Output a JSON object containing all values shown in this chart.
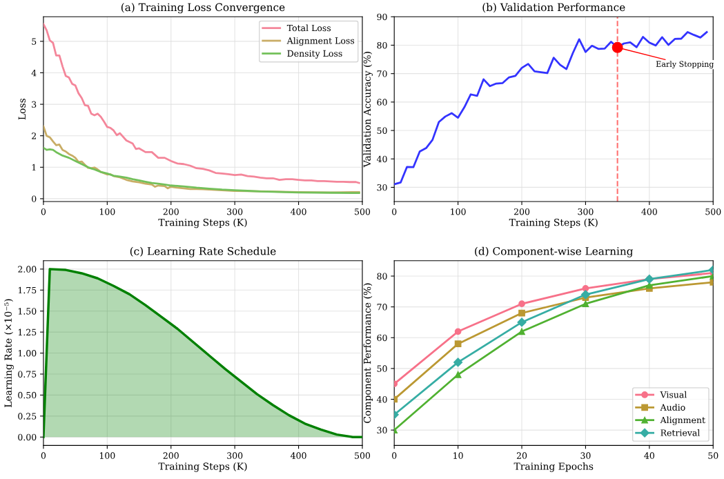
{
  "chart_data": [
    {
      "type": "line",
      "title": "(a) Training Loss Convergence",
      "xlabel": "Training Steps (K)",
      "ylabel": "Loss",
      "xlim": [
        0,
        500
      ],
      "xticks": [
        0,
        100,
        200,
        300,
        400,
        500
      ],
      "ylim": [
        -0.09,
        5.78
      ],
      "yticks": [
        0,
        1,
        2,
        3,
        4,
        5
      ],
      "grid": true,
      "legend": "top right",
      "series": [
        {
          "name": "Total Loss",
          "color": "#f4869a",
          "x": [
            0,
            5,
            10,
            15,
            20,
            25,
            30,
            35,
            40,
            45,
            50,
            55,
            60,
            65,
            70,
            75,
            80,
            85,
            90,
            95,
            100,
            105,
            110,
            115,
            120,
            130,
            140,
            145,
            150,
            160,
            170,
            180,
            190,
            200,
            210,
            220,
            230,
            240,
            250,
            260,
            270,
            280,
            290,
            300,
            310,
            320,
            330,
            340,
            350,
            360,
            370,
            380,
            390,
            400,
            410,
            420,
            430,
            440,
            450,
            460,
            470,
            480,
            490,
            495
          ],
          "values": [
            5.55,
            5.35,
            5.03,
            4.95,
            4.55,
            4.55,
            4.2,
            3.9,
            3.85,
            3.65,
            3.6,
            3.35,
            3.2,
            2.97,
            2.95,
            2.7,
            2.65,
            2.7,
            2.6,
            2.45,
            2.28,
            2.25,
            2.17,
            2.02,
            2.08,
            1.85,
            1.75,
            1.58,
            1.6,
            1.48,
            1.48,
            1.3,
            1.3,
            1.2,
            1.12,
            1.1,
            1.05,
            0.97,
            0.95,
            0.9,
            0.82,
            0.8,
            0.78,
            0.75,
            0.77,
            0.72,
            0.7,
            0.67,
            0.65,
            0.65,
            0.6,
            0.62,
            0.62,
            0.6,
            0.58,
            0.58,
            0.56,
            0.56,
            0.55,
            0.54,
            0.54,
            0.53,
            0.53,
            0.5
          ]
        },
        {
          "name": "Alignment Loss",
          "color": "#c9ad66",
          "x": [
            0,
            5,
            10,
            15,
            20,
            25,
            30,
            35,
            40,
            45,
            50,
            55,
            60,
            65,
            70,
            75,
            80,
            85,
            90,
            100,
            105,
            110,
            120,
            130,
            140,
            150,
            160,
            170,
            175,
            180,
            190,
            195,
            200,
            210,
            220,
            230,
            240,
            250,
            260,
            270,
            280,
            300,
            320,
            350,
            400,
            450,
            495
          ],
          "values": [
            2.3,
            2.0,
            1.95,
            1.82,
            1.7,
            1.72,
            1.55,
            1.5,
            1.42,
            1.37,
            1.3,
            1.17,
            1.18,
            1.08,
            0.98,
            0.97,
            0.99,
            0.93,
            0.85,
            0.77,
            0.78,
            0.72,
            0.68,
            0.6,
            0.55,
            0.52,
            0.48,
            0.45,
            0.38,
            0.42,
            0.4,
            0.33,
            0.38,
            0.35,
            0.33,
            0.31,
            0.31,
            0.3,
            0.29,
            0.28,
            0.27,
            0.25,
            0.24,
            0.23,
            0.21,
            0.2,
            0.21
          ]
        },
        {
          "name": "Density Loss",
          "color": "#73c05a",
          "x": [
            0,
            5,
            10,
            15,
            20,
            30,
            40,
            50,
            60,
            70,
            75,
            80,
            90,
            100,
            110,
            120,
            130,
            140,
            150,
            160,
            170,
            180,
            190,
            200,
            220,
            240,
            260,
            280,
            300,
            320,
            340,
            360,
            380,
            400,
            450,
            495
          ],
          "values": [
            1.62,
            1.55,
            1.57,
            1.55,
            1.48,
            1.37,
            1.3,
            1.2,
            1.1,
            1.0,
            0.96,
            0.93,
            0.85,
            0.8,
            0.73,
            0.7,
            0.67,
            0.62,
            0.58,
            0.54,
            0.5,
            0.48,
            0.45,
            0.42,
            0.39,
            0.35,
            0.32,
            0.29,
            0.27,
            0.25,
            0.23,
            0.22,
            0.21,
            0.2,
            0.19,
            0.18
          ]
        }
      ]
    },
    {
      "type": "line",
      "title": "(b) Validation Performance",
      "xlabel": "Training Steps (K)",
      "ylabel": "Validation Accuracy (%)",
      "xlim": [
        0,
        500
      ],
      "xticks": [
        0,
        100,
        200,
        300,
        400,
        500
      ],
      "ylim": [
        25,
        90
      ],
      "yticks": [
        30,
        40,
        50,
        60,
        70,
        80,
        90
      ],
      "grid": true,
      "ref_lines": [
        {
          "axis": "x",
          "value": 350,
          "color": "#ff7070",
          "line_style": "dashed"
        }
      ],
      "annotations": [
        {
          "text": "Early Stopping",
          "x": 350,
          "y": 79.2
        }
      ],
      "series": [
        {
          "color": "#3333ff",
          "x": [
            0,
            10,
            20,
            30,
            40,
            50,
            60,
            70,
            80,
            90,
            100,
            110,
            120,
            130,
            140,
            150,
            160,
            170,
            180,
            190,
            200,
            210,
            220,
            230,
            240,
            250,
            260,
            270,
            280,
            290,
            300,
            310,
            320,
            330,
            340,
            350,
            360,
            370,
            380,
            390,
            400,
            410,
            420,
            430,
            440,
            450,
            460,
            470,
            480,
            490
          ],
          "values": [
            31.1,
            31.7,
            37.2,
            37.1,
            42.6,
            43.8,
            46.7,
            53,
            54.9,
            56.1,
            54.5,
            58.2,
            62.7,
            62.2,
            68,
            65.6,
            66.5,
            66.7,
            68.7,
            69.2,
            72,
            73.4,
            70.8,
            70.5,
            70.2,
            75.6,
            73.1,
            71.6,
            77.2,
            82.1,
            77.6,
            79.8,
            78.7,
            78.8,
            81.2,
            79.2,
            80.6,
            81,
            79.3,
            82.9,
            80.9,
            79.9,
            82.8,
            80.1,
            82.2,
            82.3,
            84.6,
            83.6,
            82.7,
            84.6
          ]
        },
        {
          "type": "scatter",
          "color": "#ff0000",
          "x": [
            350
          ],
          "values": [
            79.2
          ]
        }
      ]
    },
    {
      "type": "area",
      "title": "(c) Learning Rate Schedule",
      "xlabel": "Training Steps (K)",
      "ylabel": "Learning Rate (×10⁻⁵)",
      "xlim": [
        0,
        500
      ],
      "xticks": [
        0,
        100,
        200,
        300,
        400,
        500
      ],
      "ylim": [
        -0.1,
        2.1
      ],
      "yticks": [
        {
          "value": 0,
          "label": "0.00"
        },
        {
          "value": 0.25,
          "label": "0.25"
        },
        {
          "value": 0.5,
          "label": "0.50"
        },
        {
          "value": 0.75,
          "label": "0.75"
        },
        {
          "value": 1,
          "label": "1.00"
        },
        {
          "value": 1.25,
          "label": "1.25"
        },
        {
          "value": 1.5,
          "label": "1.50"
        },
        {
          "value": 1.75,
          "label": "1.75"
        },
        {
          "value": 2,
          "label": "2.00"
        }
      ],
      "grid": true,
      "series": [
        {
          "color": "#008000",
          "x": [
            0,
            10,
            35,
            60,
            85,
            110,
            135,
            160,
            185,
            210,
            235,
            260,
            285,
            310,
            335,
            360,
            385,
            410,
            435,
            460,
            485,
            500
          ],
          "values": [
            0,
            2.0,
            1.99,
            1.95,
            1.89,
            1.8,
            1.7,
            1.57,
            1.43,
            1.29,
            1.13,
            0.97,
            0.81,
            0.66,
            0.51,
            0.38,
            0.26,
            0.16,
            0.09,
            0.03,
            0.0,
            0
          ]
        }
      ]
    },
    {
      "type": "line",
      "title": "(d) Component-wise Learning",
      "xlabel": "Training Epochs",
      "ylabel": "Component Performance (%)",
      "x": [
        0,
        10,
        20,
        30,
        40,
        50
      ],
      "xlim": [
        0,
        50
      ],
      "xticks": [
        0,
        10,
        20,
        30,
        40,
        50
      ],
      "ylim": [
        25,
        85
      ],
      "yticks": [
        30,
        40,
        50,
        60,
        70,
        80
      ],
      "grid": true,
      "legend": "bottom right",
      "series": [
        {
          "name": "Visual",
          "color": "#f77189",
          "marker": "circle",
          "values": [
            45,
            62,
            71,
            76,
            79,
            81
          ]
        },
        {
          "name": "Audio",
          "color": "#bb9832",
          "marker": "square",
          "values": [
            40,
            58,
            68,
            73,
            76,
            78
          ]
        },
        {
          "name": "Alignment",
          "color": "#50b131",
          "marker": "triangle",
          "values": [
            30,
            48,
            62,
            71,
            77,
            80
          ]
        },
        {
          "name": "Retrieval",
          "color": "#36ada4",
          "marker": "diamond",
          "values": [
            35,
            52,
            65,
            74,
            79,
            82
          ]
        }
      ]
    }
  ]
}
